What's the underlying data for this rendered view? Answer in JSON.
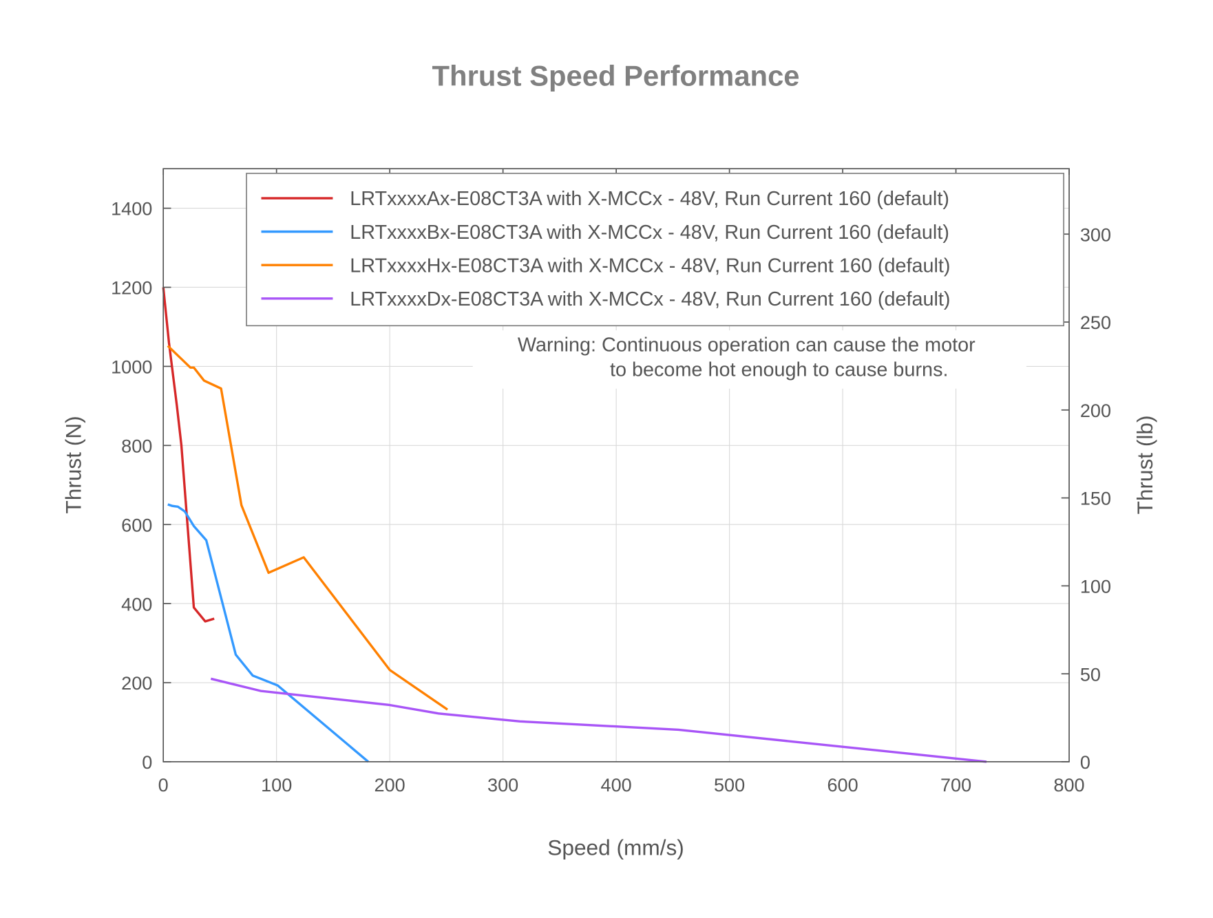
{
  "chart_data": {
    "type": "line",
    "title": "Thrust Speed Performance",
    "xlabel": "Speed (mm/s)",
    "ylabel": "Thrust (N)",
    "y2label": "Thrust (lb)",
    "xlim": [
      0,
      800
    ],
    "ylim": [
      0,
      1500
    ],
    "y2lim": [
      0,
      337.2
    ],
    "xticks": [
      0,
      100,
      200,
      300,
      400,
      500,
      600,
      700,
      800
    ],
    "yticks": [
      0,
      200,
      400,
      600,
      800,
      1000,
      1200,
      1400
    ],
    "y2ticks": [
      0,
      50,
      100,
      150,
      200,
      250,
      300
    ],
    "grid": true,
    "legend_position": "top-right",
    "annotation": [
      "Warning: Continuous operation can cause the motor",
      "to become hot enough to cause burns."
    ],
    "series": [
      {
        "name": "LRTxxxxAx-E08CT3A with X-MCCx - 48V, Run Current 160 (default)",
        "color": "#d62728",
        "x": [
          0,
          5,
          12,
          16,
          27,
          37,
          45
        ],
        "y": [
          1200,
          1060,
          900,
          800,
          390,
          355,
          362
        ]
      },
      {
        "name": "LRTxxxxBx-E08CT3A with X-MCCx - 48V, Run Current 160 (default)",
        "color": "#3399ff",
        "x": [
          4,
          8,
          13,
          19,
          27,
          38,
          64,
          79,
          101,
          181
        ],
        "y": [
          651,
          647,
          645,
          633,
          596,
          560,
          271,
          218,
          193,
          0
        ]
      },
      {
        "name": "LRTxxxxHx-E08CT3A with X-MCCx - 48V, Run Current 160 (default)",
        "color": "#ff8000",
        "x": [
          4,
          24,
          27,
          36,
          51,
          69,
          93,
          124,
          200,
          251
        ],
        "y": [
          1052,
          997,
          997,
          964,
          944,
          649,
          478,
          517,
          232,
          132
        ]
      },
      {
        "name": "LRTxxxxDx-E08CT3A with X-MCCx - 48V, Run Current 160 (default)",
        "color": "#a855f7",
        "x": [
          42,
          86,
          199,
          243,
          315,
          455,
          700,
          727
        ],
        "y": [
          210,
          179,
          144,
          122,
          102,
          81,
          8,
          0
        ]
      }
    ]
  }
}
